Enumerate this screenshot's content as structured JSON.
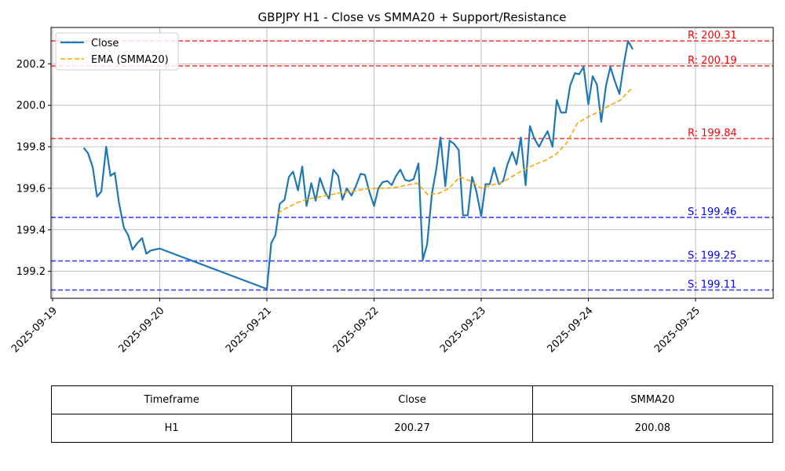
{
  "chart_data": {
    "type": "line",
    "title": "GBPJPY H1 - Close vs SMMA20 + Support/Resistance",
    "xlabel": "",
    "ylabel": "",
    "x_ticks": [
      "2025-09-19",
      "2025-09-20",
      "2025-09-21",
      "2025-09-22",
      "2025-09-23",
      "2025-09-24",
      "2025-09-25"
    ],
    "y_ticks": [
      "199.2",
      "199.4",
      "199.6",
      "199.8",
      "200.0",
      "200.2"
    ],
    "xlim": [
      0,
      6.85
    ],
    "ylim": [
      199.07,
      200.375
    ],
    "grid": true,
    "legend_location": "upper-left",
    "colors": {
      "close": "#1f77b4",
      "ema": "#ffa500",
      "resistance": "#ff0000",
      "support": "#0000ff",
      "grid": "#b0b0b0"
    },
    "series": [
      {
        "name": "Close",
        "style": "solid",
        "x": [
          0.29,
          0.33,
          0.375,
          0.415,
          0.455,
          0.5,
          0.54,
          0.58,
          0.62,
          0.665,
          0.705,
          0.745,
          0.79,
          0.835,
          0.875,
          0.915,
          1.0,
          2.0,
          2.04,
          2.08,
          2.12,
          2.165,
          2.205,
          2.245,
          2.29,
          2.33,
          2.37,
          2.415,
          2.455,
          2.495,
          2.54,
          2.58,
          2.62,
          2.665,
          2.705,
          2.745,
          2.79,
          2.83,
          2.875,
          2.915,
          2.955,
          3.0,
          3.04,
          3.08,
          3.125,
          3.165,
          3.205,
          3.245,
          3.29,
          3.33,
          3.37,
          3.415,
          3.455,
          3.495,
          3.54,
          3.58,
          3.62,
          3.665,
          3.705,
          3.745,
          3.79,
          3.83,
          3.875,
          3.915,
          3.955,
          4.0,
          4.04,
          4.08,
          4.12,
          4.165,
          4.205,
          4.245,
          4.29,
          4.33,
          4.37,
          4.415,
          4.455,
          4.495,
          4.54,
          4.58,
          4.62,
          4.665,
          4.705,
          4.745,
          4.79,
          4.83,
          4.875,
          4.915,
          4.955,
          5.0,
          5.04,
          5.08,
          5.12,
          5.165,
          5.205,
          5.245,
          5.29,
          5.33,
          5.37,
          5.415
        ],
        "values": [
          199.795,
          199.77,
          199.7,
          199.56,
          199.585,
          199.8,
          199.66,
          199.675,
          199.53,
          199.41,
          199.375,
          199.305,
          199.335,
          199.36,
          199.285,
          199.3,
          199.31,
          199.115,
          199.335,
          199.375,
          199.525,
          199.545,
          199.655,
          199.68,
          199.59,
          199.705,
          199.515,
          199.625,
          199.54,
          199.65,
          199.585,
          199.55,
          199.69,
          199.66,
          199.545,
          199.6,
          199.565,
          199.61,
          199.67,
          199.665,
          199.585,
          199.515,
          199.6,
          199.63,
          199.635,
          199.615,
          199.66,
          199.69,
          199.64,
          199.635,
          199.645,
          199.72,
          199.255,
          199.33,
          199.575,
          199.69,
          199.845,
          199.61,
          199.83,
          199.815,
          199.785,
          199.47,
          199.47,
          199.655,
          199.585,
          199.465,
          199.62,
          199.62,
          199.7,
          199.62,
          199.635,
          199.715,
          199.775,
          199.715,
          199.845,
          199.615,
          199.9,
          199.84,
          199.8,
          199.84,
          199.875,
          199.8,
          200.025,
          199.965,
          199.965,
          200.095,
          200.155,
          200.15,
          200.185,
          200.005,
          200.14,
          200.1,
          199.92,
          200.095,
          200.185,
          200.12,
          200.055,
          200.195,
          200.31,
          200.27
        ]
      },
      {
        "name": "EMA (SMMA20)",
        "style": "dashed",
        "x": [
          2.1,
          2.2,
          2.3,
          2.4,
          2.5,
          2.6,
          2.7,
          2.8,
          2.9,
          3.0,
          3.1,
          3.2,
          3.3,
          3.4,
          3.45,
          3.5,
          3.6,
          3.7,
          3.8,
          3.9,
          4.0,
          4.1,
          4.2,
          4.3,
          4.4,
          4.5,
          4.6,
          4.7,
          4.8,
          4.9,
          5.0,
          5.1,
          5.2,
          5.3,
          5.4
        ],
        "values": [
          199.48,
          199.51,
          199.535,
          199.55,
          199.56,
          199.57,
          199.58,
          199.585,
          199.595,
          199.6,
          199.6,
          199.605,
          199.615,
          199.625,
          199.6,
          199.57,
          199.575,
          199.6,
          199.655,
          199.635,
          199.6,
          199.615,
          199.63,
          199.66,
          199.69,
          199.715,
          199.735,
          199.765,
          199.82,
          199.915,
          199.945,
          199.97,
          200.0,
          200.025,
          200.08
        ]
      }
    ],
    "reference_lines": [
      {
        "kind": "resistance",
        "value": 200.31,
        "label": "R: 200.31"
      },
      {
        "kind": "resistance",
        "value": 200.19,
        "label": "R: 200.19"
      },
      {
        "kind": "resistance",
        "value": 199.84,
        "label": "R: 199.84"
      },
      {
        "kind": "support",
        "value": 199.46,
        "label": "S: 199.46"
      },
      {
        "kind": "support",
        "value": 199.25,
        "label": "S: 199.25"
      },
      {
        "kind": "support",
        "value": 199.11,
        "label": "S: 199.11"
      }
    ]
  },
  "table": {
    "headers": [
      "Timeframe",
      "Close",
      "SMMA20"
    ],
    "rows": [
      [
        "H1",
        "200.27",
        "200.08"
      ]
    ]
  }
}
